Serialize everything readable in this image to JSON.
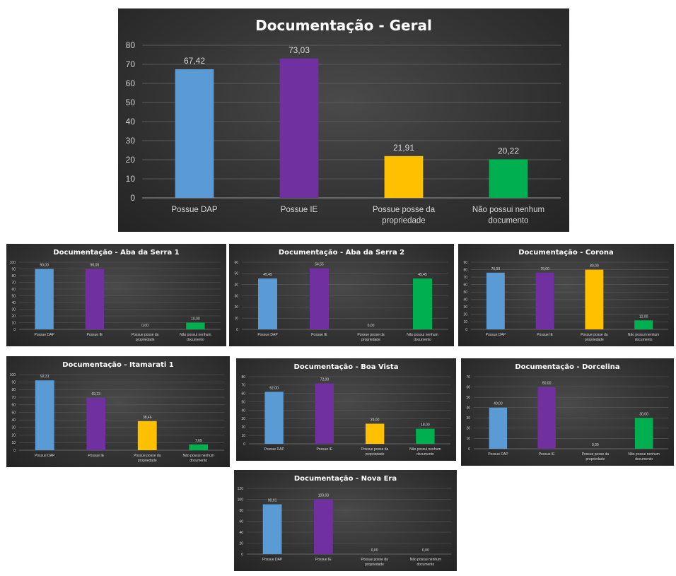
{
  "colors": {
    "blue": "#5b9bd5",
    "purple": "#7030a0",
    "yellow": "#ffc000",
    "green": "#00b050",
    "background": "#333333",
    "gridline": "#5a5a5a"
  },
  "chart_data": [
    {
      "type": "bar",
      "title": "Documentação - Geral",
      "categories": [
        "Possue DAP",
        "Possue IE",
        "Possue posse da propriedade",
        "Não possui nenhum documento"
      ],
      "values": [
        67.42,
        73.03,
        21.91,
        20.22
      ],
      "labels": [
        "67,42",
        "73,03",
        "21,91",
        "20,22"
      ],
      "ylim": [
        0,
        80
      ],
      "yticks": [
        "0",
        "10",
        "20",
        "30",
        "40",
        "50",
        "60",
        "70",
        "80"
      ],
      "grid": true,
      "legend": "none"
    },
    {
      "type": "bar",
      "title": "Documentação - Aba da Serra 1",
      "categories": [
        "Possue DAP",
        "Possue IE",
        "Possue posse da propriedade",
        "Não possui nenhum documento"
      ],
      "values": [
        90,
        90,
        0,
        10
      ],
      "labels": [
        "90,00",
        "90,00",
        "0,00",
        "10,00"
      ],
      "ylim": [
        0,
        100
      ],
      "yticks": [
        "0",
        "10",
        "20",
        "30",
        "40",
        "50",
        "60",
        "70",
        "80",
        "90",
        "100"
      ],
      "grid": true,
      "legend": "none"
    },
    {
      "type": "bar",
      "title": "Documentação - Aba da Serra 2",
      "categories": [
        "Possue DAP",
        "Possue IE",
        "Possue posse da propriedade",
        "Não possui nenhum documento"
      ],
      "values": [
        45.45,
        54.55,
        0,
        45.45
      ],
      "labels": [
        "45,45",
        "54,55",
        "0,00",
        "45,45"
      ],
      "ylim": [
        0,
        60
      ],
      "yticks": [
        "0",
        "10",
        "20",
        "30",
        "40",
        "50",
        "60"
      ],
      "grid": true,
      "legend": "none"
    },
    {
      "type": "bar",
      "title": "Documentação - Corona",
      "categories": [
        "Possue DAP",
        "Possue IE",
        "Possue posse da propriedade",
        "Não possui nenhum documento"
      ],
      "values": [
        76,
        76,
        80,
        12
      ],
      "labels": [
        "76,00",
        "76,00",
        "80,00",
        "12,00"
      ],
      "ylim": [
        0,
        90
      ],
      "yticks": [
        "0",
        "10",
        "20",
        "30",
        "40",
        "50",
        "60",
        "70",
        "80",
        "90"
      ],
      "grid": true,
      "legend": "none"
    },
    {
      "type": "bar",
      "title": "Documentação - Itamarati 1",
      "categories": [
        "Possue DAP",
        "Possue IE",
        "Possue posse da propriedade",
        "Não possui nenhum documento"
      ],
      "values": [
        92.31,
        69.23,
        38.46,
        7.69
      ],
      "labels": [
        "92,31",
        "69,23",
        "38,46",
        "7,69"
      ],
      "ylim": [
        0,
        100
      ],
      "yticks": [
        "0",
        "10",
        "20",
        "30",
        "40",
        "50",
        "60",
        "70",
        "80",
        "90",
        "100"
      ],
      "grid": true,
      "legend": "none"
    },
    {
      "type": "bar",
      "title": "Documentação - Boa Vista",
      "categories": [
        "Possue DAP",
        "Possue IE",
        "Possue posse da propriedade",
        "Não possui nenhum documento"
      ],
      "values": [
        62,
        72,
        24,
        18
      ],
      "labels": [
        "62,00",
        "72,00",
        "24,00",
        "18,00"
      ],
      "ylim": [
        0,
        80
      ],
      "yticks": [
        "0",
        "10",
        "20",
        "30",
        "40",
        "50",
        "60",
        "70",
        "80"
      ],
      "grid": true,
      "legend": "none"
    },
    {
      "type": "bar",
      "title": "Documentação - Dorcelina",
      "categories": [
        "Possue DAP",
        "Possue IE",
        "Possue posse da propriedade",
        "Não possui nenhum documento"
      ],
      "values": [
        40,
        60,
        0,
        30
      ],
      "labels": [
        "40,00",
        "60,00",
        "0,00",
        "30,00"
      ],
      "ylim": [
        0,
        70
      ],
      "yticks": [
        "0",
        "10",
        "20",
        "30",
        "40",
        "50",
        "60",
        "70"
      ],
      "grid": true,
      "legend": "none"
    },
    {
      "type": "bar",
      "title": "Documentação - Nova Era",
      "categories": [
        "Possue DAP",
        "Possue IE",
        "Possue posse da propriedade",
        "Não possui nenhum documento"
      ],
      "values": [
        90.91,
        100,
        0,
        0
      ],
      "labels": [
        "90,91",
        "100,00",
        "0,00",
        "0,00"
      ],
      "ylim": [
        0,
        120
      ],
      "yticks": [
        "0",
        "20",
        "40",
        "60",
        "80",
        "100",
        "120"
      ],
      "grid": true,
      "legend": "none"
    }
  ]
}
